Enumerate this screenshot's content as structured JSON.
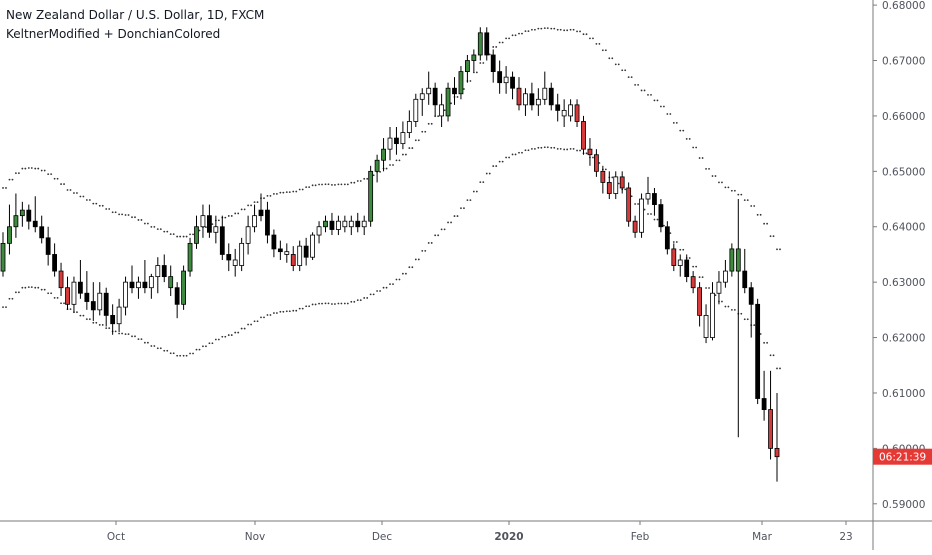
{
  "header": {
    "title": "New Zealand Dollar / U.S. Dollar, 1D, FXCM",
    "indicators": "KeltnerModified + DonchianColored"
  },
  "price_axis": {
    "ticks": [
      "0.68000",
      "0.67000",
      "0.66000",
      "0.65000",
      "0.64000",
      "0.63000",
      "0.62000",
      "0.61000",
      "0.60000",
      "0.59000"
    ],
    "current_price_label": "06:21:39",
    "current_price": 0.5985
  },
  "time_axis": {
    "labels": [
      "Oct",
      "Nov",
      "Dec",
      "2020",
      "Feb",
      "Mar",
      "23"
    ]
  },
  "colors": {
    "bull": "#3e8a3e",
    "bear_red": "#d63a3a",
    "bear_black": "#000000",
    "hollow": "#ffffff",
    "wick": "#000000",
    "dots": "#333333",
    "price_tag": "#e53935",
    "axis_text": "#50535e",
    "axis_line": "#7a7a7a"
  },
  "chart_data": {
    "type": "candlestick",
    "title": "New Zealand Dollar / U.S. Dollar, 1D, FXCM",
    "ylim": [
      0.5887,
      0.6802
    ],
    "y_ticks": [
      0.68,
      0.67,
      0.66,
      0.65,
      0.64,
      0.63,
      0.62,
      0.61,
      0.6,
      0.59
    ],
    "x_ticks": [
      "Oct",
      "Nov",
      "Dec",
      "2020",
      "Feb",
      "Mar",
      "23"
    ],
    "grid": false,
    "series": [
      {
        "kind": "ohlc",
        "data": [
          [
            0.632,
            0.639,
            0.631,
            0.637,
            "green"
          ],
          [
            0.637,
            0.644,
            0.635,
            0.64,
            "green"
          ],
          [
            0.64,
            0.646,
            0.638,
            0.642,
            "green"
          ],
          [
            0.642,
            0.6445,
            0.64,
            0.643,
            "green"
          ],
          [
            0.643,
            0.644,
            0.6395,
            0.641,
            "black"
          ],
          [
            0.641,
            0.6455,
            0.639,
            0.64,
            "black"
          ],
          [
            0.64,
            0.642,
            0.637,
            0.638,
            "black"
          ],
          [
            0.638,
            0.64,
            0.633,
            0.635,
            "black"
          ],
          [
            0.635,
            0.637,
            0.631,
            0.632,
            "black"
          ],
          [
            0.632,
            0.6335,
            0.6275,
            0.629,
            "red"
          ],
          [
            0.629,
            0.631,
            0.625,
            0.626,
            "red"
          ],
          [
            0.626,
            0.631,
            0.6245,
            0.63,
            "hollow"
          ],
          [
            0.63,
            0.634,
            0.627,
            0.628,
            "black"
          ],
          [
            0.628,
            0.632,
            0.625,
            0.6265,
            "black"
          ],
          [
            0.6265,
            0.63,
            0.623,
            0.625,
            "black"
          ],
          [
            0.625,
            0.63,
            0.624,
            0.628,
            "hollow"
          ],
          [
            0.628,
            0.629,
            0.622,
            0.624,
            "black"
          ],
          [
            0.624,
            0.626,
            0.6205,
            0.6225,
            "black"
          ],
          [
            0.6225,
            0.627,
            0.621,
            0.6255,
            "hollow"
          ],
          [
            0.6255,
            0.631,
            0.624,
            0.63,
            "hollow"
          ],
          [
            0.63,
            0.633,
            0.628,
            0.629,
            "black"
          ],
          [
            0.629,
            0.631,
            0.627,
            0.63,
            "hollow"
          ],
          [
            0.63,
            0.634,
            0.628,
            0.629,
            "black"
          ],
          [
            0.629,
            0.6315,
            0.627,
            0.631,
            "hollow"
          ],
          [
            0.631,
            0.6345,
            0.628,
            0.633,
            "hollow"
          ],
          [
            0.633,
            0.635,
            0.63,
            0.631,
            "black"
          ],
          [
            0.631,
            0.633,
            0.6275,
            0.629,
            "green"
          ],
          [
            0.629,
            0.63,
            0.6235,
            0.626,
            "black"
          ],
          [
            0.626,
            0.633,
            0.625,
            0.632,
            "green"
          ],
          [
            0.632,
            0.638,
            0.631,
            0.637,
            "green"
          ],
          [
            0.637,
            0.642,
            0.636,
            0.64,
            "green"
          ],
          [
            0.64,
            0.644,
            0.638,
            0.642,
            "hollow"
          ],
          [
            0.642,
            0.644,
            0.638,
            0.639,
            "black"
          ],
          [
            0.639,
            0.642,
            0.637,
            0.64,
            "hollow"
          ],
          [
            0.64,
            0.642,
            0.634,
            0.635,
            "black"
          ],
          [
            0.635,
            0.637,
            0.632,
            0.634,
            "black"
          ],
          [
            0.634,
            0.636,
            0.631,
            0.633,
            "hollow"
          ],
          [
            0.633,
            0.638,
            0.632,
            0.637,
            "hollow"
          ],
          [
            0.637,
            0.642,
            0.635,
            0.64,
            "hollow"
          ],
          [
            0.64,
            0.644,
            0.639,
            0.642,
            "hollow"
          ],
          [
            0.642,
            0.646,
            0.641,
            0.643,
            "black"
          ],
          [
            0.643,
            0.6445,
            0.637,
            0.6385,
            "black"
          ],
          [
            0.6385,
            0.6395,
            0.6345,
            0.636,
            "black"
          ],
          [
            0.636,
            0.6375,
            0.634,
            0.6355,
            "black"
          ],
          [
            0.6355,
            0.637,
            0.6335,
            0.635,
            "hollow"
          ],
          [
            0.635,
            0.6365,
            0.632,
            0.633,
            "red"
          ],
          [
            0.633,
            0.6375,
            0.632,
            0.6365,
            "hollow"
          ],
          [
            0.6365,
            0.638,
            0.633,
            0.6345,
            "black"
          ],
          [
            0.6345,
            0.639,
            0.634,
            0.6385,
            "hollow"
          ],
          [
            0.6385,
            0.641,
            0.637,
            0.64,
            "hollow"
          ],
          [
            0.64,
            0.642,
            0.639,
            0.641,
            "green"
          ],
          [
            0.641,
            0.6425,
            0.6385,
            0.6395,
            "black"
          ],
          [
            0.6395,
            0.642,
            0.6385,
            0.641,
            "hollow"
          ],
          [
            0.641,
            0.642,
            0.639,
            0.64,
            "hollow"
          ],
          [
            0.64,
            0.642,
            0.6385,
            0.641,
            "hollow"
          ],
          [
            0.641,
            0.6425,
            0.639,
            0.64,
            "black"
          ],
          [
            0.64,
            0.642,
            0.6385,
            0.641,
            "hollow"
          ],
          [
            0.641,
            0.651,
            0.64,
            0.65,
            "green"
          ],
          [
            0.65,
            0.653,
            0.648,
            0.652,
            "green"
          ],
          [
            0.652,
            0.656,
            0.65,
            0.654,
            "green"
          ],
          [
            0.654,
            0.658,
            0.652,
            0.656,
            "hollow"
          ],
          [
            0.656,
            0.658,
            0.653,
            0.655,
            "black"
          ],
          [
            0.655,
            0.659,
            0.654,
            0.657,
            "hollow"
          ],
          [
            0.657,
            0.661,
            0.656,
            0.659,
            "hollow"
          ],
          [
            0.659,
            0.664,
            0.658,
            0.663,
            "hollow"
          ],
          [
            0.663,
            0.665,
            0.66,
            0.664,
            "hollow"
          ],
          [
            0.664,
            0.668,
            0.662,
            0.665,
            "hollow"
          ],
          [
            0.665,
            0.666,
            0.66,
            0.662,
            "black"
          ],
          [
            0.662,
            0.664,
            0.658,
            0.66,
            "hollow"
          ],
          [
            0.66,
            0.666,
            0.659,
            0.665,
            "green"
          ],
          [
            0.665,
            0.667,
            0.662,
            0.664,
            "black"
          ],
          [
            0.664,
            0.669,
            0.663,
            0.668,
            "green"
          ],
          [
            0.668,
            0.671,
            0.666,
            0.67,
            "green"
          ],
          [
            0.67,
            0.672,
            0.668,
            0.671,
            "green"
          ],
          [
            0.671,
            0.676,
            0.67,
            0.675,
            "green"
          ],
          [
            0.675,
            0.676,
            0.67,
            0.671,
            "black"
          ],
          [
            0.671,
            0.672,
            0.666,
            0.668,
            "black"
          ],
          [
            0.668,
            0.67,
            0.664,
            0.666,
            "black"
          ],
          [
            0.666,
            0.669,
            0.664,
            0.667,
            "hollow"
          ],
          [
            0.667,
            0.668,
            0.663,
            0.665,
            "black"
          ],
          [
            0.665,
            0.667,
            0.661,
            0.662,
            "red"
          ],
          [
            0.662,
            0.665,
            0.66,
            0.664,
            "hollow"
          ],
          [
            0.664,
            0.666,
            0.661,
            0.662,
            "black"
          ],
          [
            0.662,
            0.665,
            0.66,
            0.663,
            "hollow"
          ],
          [
            0.663,
            0.668,
            0.662,
            0.665,
            "hollow"
          ],
          [
            0.665,
            0.666,
            0.661,
            0.662,
            "black"
          ],
          [
            0.662,
            0.664,
            0.659,
            0.661,
            "black"
          ],
          [
            0.661,
            0.663,
            0.658,
            0.66,
            "hollow"
          ],
          [
            0.66,
            0.663,
            0.659,
            0.662,
            "hollow"
          ],
          [
            0.662,
            0.663,
            0.658,
            0.659,
            "red"
          ],
          [
            0.659,
            0.66,
            0.653,
            0.654,
            "red"
          ],
          [
            0.654,
            0.656,
            0.651,
            0.653,
            "red"
          ],
          [
            0.653,
            0.654,
            0.649,
            0.65,
            "red"
          ],
          [
            0.65,
            0.651,
            0.646,
            0.648,
            "red"
          ],
          [
            0.648,
            0.65,
            0.645,
            0.646,
            "red"
          ],
          [
            0.646,
            0.65,
            0.645,
            0.649,
            "hollow"
          ],
          [
            0.649,
            0.65,
            0.646,
            0.647,
            "red"
          ],
          [
            0.647,
            0.648,
            0.64,
            0.641,
            "red"
          ],
          [
            0.641,
            0.642,
            0.638,
            0.639,
            "red"
          ],
          [
            0.639,
            0.646,
            0.638,
            0.645,
            "hollow"
          ],
          [
            0.645,
            0.649,
            0.644,
            0.646,
            "hollow"
          ],
          [
            0.646,
            0.647,
            0.642,
            0.644,
            "black"
          ],
          [
            0.644,
            0.645,
            0.639,
            0.64,
            "black"
          ],
          [
            0.64,
            0.641,
            0.635,
            0.636,
            "black"
          ],
          [
            0.636,
            0.637,
            0.632,
            0.633,
            "red"
          ],
          [
            0.633,
            0.635,
            0.631,
            0.634,
            "hollow"
          ],
          [
            0.634,
            0.635,
            0.63,
            0.631,
            "black"
          ],
          [
            0.631,
            0.632,
            0.628,
            0.629,
            "red"
          ],
          [
            0.629,
            0.63,
            0.622,
            0.624,
            "red"
          ],
          [
            0.624,
            0.626,
            0.619,
            0.62,
            "hollow"
          ],
          [
            0.62,
            0.63,
            0.6195,
            0.628,
            "hollow"
          ],
          [
            0.628,
            0.632,
            0.626,
            0.63,
            "hollow"
          ],
          [
            0.63,
            0.634,
            0.629,
            0.632,
            "hollow"
          ],
          [
            0.632,
            0.637,
            0.631,
            0.636,
            "green"
          ],
          [
            0.636,
            0.645,
            0.602,
            0.632,
            "green"
          ],
          [
            0.632,
            0.636,
            0.628,
            0.629,
            "black"
          ],
          [
            0.629,
            0.63,
            0.62,
            0.626,
            "black"
          ],
          [
            0.626,
            0.627,
            0.608,
            0.609,
            "black"
          ],
          [
            0.609,
            0.614,
            0.605,
            0.607,
            "black"
          ],
          [
            0.607,
            0.614,
            0.598,
            0.6,
            "red"
          ],
          [
            0.6,
            0.61,
            0.594,
            0.5985,
            "red"
          ]
        ]
      }
    ]
  }
}
